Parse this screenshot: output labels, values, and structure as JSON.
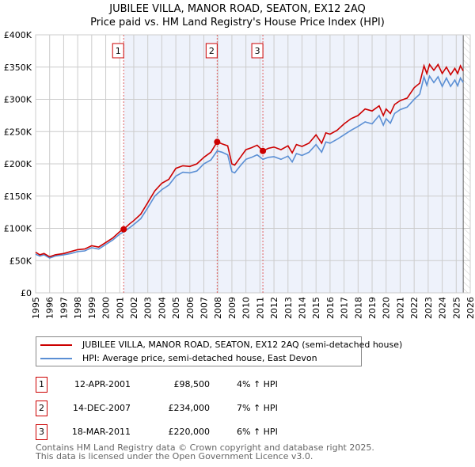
{
  "title": "JUBILEE VILLA, MANOR ROAD, SEATON, EX12 2AQ",
  "subtitle": "Price paid vs. HM Land Registry's House Price Index (HPI)",
  "colors": {
    "property": "#cc0000",
    "hpi": "#5b8fd4",
    "shade": "#eef2fb",
    "grid": "#cccccc"
  },
  "chart_data": {
    "type": "line",
    "title": "JUBILEE VILLA, MANOR ROAD, SEATON, EX12 2AQ — Price paid vs. HM Land Registry's House Price Index (HPI)",
    "xlim": [
      1995,
      2026
    ],
    "ylim": [
      0,
      400000
    ],
    "x_ticks": [
      "1995",
      "1996",
      "1997",
      "1998",
      "1999",
      "2000",
      "2001",
      "2002",
      "2003",
      "2004",
      "2005",
      "2006",
      "2007",
      "2008",
      "2009",
      "2010",
      "2011",
      "2012",
      "2013",
      "2014",
      "2015",
      "2016",
      "2017",
      "2018",
      "2019",
      "2020",
      "2021",
      "2022",
      "2023",
      "2024",
      "2025",
      "2026"
    ],
    "y_ticks": [
      {
        "value": 0,
        "label": "£0"
      },
      {
        "value": 50000,
        "label": "£50K"
      },
      {
        "value": 100000,
        "label": "£100K"
      },
      {
        "value": 150000,
        "label": "£150K"
      },
      {
        "value": 200000,
        "label": "£200K"
      },
      {
        "value": 250000,
        "label": "£250K"
      },
      {
        "value": 300000,
        "label": "£300K"
      },
      {
        "value": 350000,
        "label": "£350K"
      },
      {
        "value": 400000,
        "label": "£400K"
      }
    ],
    "grid": true,
    "shaded_from": 2001.28,
    "data_end": 2025.5,
    "series": [
      {
        "name": "JUBILEE VILLA, MANOR ROAD, SEATON, EX12 2AQ (semi-detached house)",
        "color": "#cc0000",
        "x": [
          1995,
          1995.3,
          1995.6,
          1996,
          1996.4,
          1997,
          1997.5,
          1998,
          1998.5,
          1999,
          1999.5,
          2000,
          2000.5,
          2001,
          2001.28,
          2001.7,
          2002,
          2002.5,
          2003,
          2003.5,
          2004,
          2004.5,
          2005,
          2005.5,
          2006,
          2006.5,
          2007,
          2007.5,
          2007.95,
          2008.3,
          2008.7,
          2009,
          2009.2,
          2009.6,
          2010,
          2010.4,
          2010.8,
          2011.21,
          2011.6,
          2012,
          2012.5,
          2013,
          2013.3,
          2013.6,
          2014,
          2014.5,
          2015,
          2015.4,
          2015.7,
          2016,
          2016.5,
          2017,
          2017.5,
          2018,
          2018.5,
          2019,
          2019.5,
          2019.8,
          2020,
          2020.3,
          2020.6,
          2021,
          2021.5,
          2022,
          2022.4,
          2022.7,
          2022.9,
          2023.1,
          2023.4,
          2023.7,
          2024,
          2024.3,
          2024.6,
          2024.9,
          2025.1,
          2025.3,
          2025.5
        ],
        "y": [
          63000,
          59000,
          61000,
          56000,
          59000,
          61000,
          64000,
          67000,
          68000,
          73000,
          71000,
          78000,
          85000,
          95000,
          98500,
          107000,
          112000,
          122000,
          140000,
          158000,
          170000,
          176000,
          193000,
          197000,
          196000,
          200000,
          210000,
          218000,
          234000,
          231000,
          228000,
          200000,
          198000,
          210000,
          222000,
          225000,
          229000,
          220000,
          224000,
          226000,
          222000,
          228000,
          217000,
          230000,
          227000,
          232000,
          245000,
          232000,
          248000,
          246000,
          252000,
          262000,
          270000,
          275000,
          285000,
          282000,
          290000,
          275000,
          285000,
          278000,
          292000,
          298000,
          302000,
          318000,
          325000,
          352000,
          340000,
          354000,
          345000,
          354000,
          340000,
          350000,
          338000,
          348000,
          340000,
          352000,
          344000
        ]
      },
      {
        "name": "HPI: Average price, semi-detached house, East Devon",
        "color": "#5b8fd4",
        "x": [
          1995,
          1995.3,
          1995.6,
          1996,
          1996.4,
          1997,
          1997.5,
          1998,
          1998.5,
          1999,
          1999.5,
          2000,
          2000.5,
          2001,
          2001.28,
          2001.7,
          2002,
          2002.5,
          2003,
          2003.5,
          2004,
          2004.5,
          2005,
          2005.5,
          2006,
          2006.5,
          2007,
          2007.5,
          2007.95,
          2008.3,
          2008.7,
          2009,
          2009.2,
          2009.6,
          2010,
          2010.4,
          2010.8,
          2011.21,
          2011.6,
          2012,
          2012.5,
          2013,
          2013.3,
          2013.6,
          2014,
          2014.5,
          2015,
          2015.4,
          2015.7,
          2016,
          2016.5,
          2017,
          2017.5,
          2018,
          2018.5,
          2019,
          2019.5,
          2019.8,
          2020,
          2020.3,
          2020.6,
          2021,
          2021.5,
          2022,
          2022.4,
          2022.7,
          2022.9,
          2023.1,
          2023.4,
          2023.7,
          2024,
          2024.3,
          2024.6,
          2024.9,
          2025.1,
          2025.3,
          2025.5
        ],
        "y": [
          60000,
          57000,
          59000,
          54000,
          57000,
          59000,
          61000,
          64000,
          65000,
          70000,
          68000,
          75000,
          82000,
          91000,
          94500,
          101000,
          106000,
          115000,
          132000,
          150000,
          160000,
          167000,
          181000,
          187000,
          186000,
          189000,
          200000,
          206000,
          220000,
          218000,
          214000,
          188000,
          186000,
          197000,
          207000,
          210000,
          214000,
          207000,
          210000,
          211000,
          207000,
          212000,
          203000,
          216000,
          213000,
          218000,
          230000,
          218000,
          234000,
          232000,
          238000,
          245000,
          252000,
          258000,
          265000,
          262000,
          275000,
          260000,
          270000,
          263000,
          278000,
          284000,
          288000,
          300000,
          308000,
          335000,
          322000,
          336000,
          326000,
          335000,
          320000,
          333000,
          320000,
          330000,
          321000,
          333000,
          326000
        ]
      }
    ],
    "sales": [
      {
        "id": "1",
        "x": 2001.28,
        "y": 98500
      },
      {
        "id": "2",
        "x": 2007.95,
        "y": 234000
      },
      {
        "id": "3",
        "x": 2011.21,
        "y": 220000
      }
    ]
  },
  "legend": {
    "property": "JUBILEE VILLA, MANOR ROAD, SEATON, EX12 2AQ (semi-detached house)",
    "hpi": "HPI: Average price, semi-detached house, East Devon"
  },
  "transactions": [
    {
      "num": "1",
      "date": "12-APR-2001",
      "price": "£98,500",
      "hpi": "4% ↑ HPI"
    },
    {
      "num": "2",
      "date": "14-DEC-2007",
      "price": "£234,000",
      "hpi": "7% ↑ HPI"
    },
    {
      "num": "3",
      "date": "18-MAR-2011",
      "price": "£220,000",
      "hpi": "6% ↑ HPI"
    }
  ],
  "footer": {
    "line1": "Contains HM Land Registry data © Crown copyright and database right 2025.",
    "line2": "This data is licensed under the Open Government Licence v3.0."
  }
}
